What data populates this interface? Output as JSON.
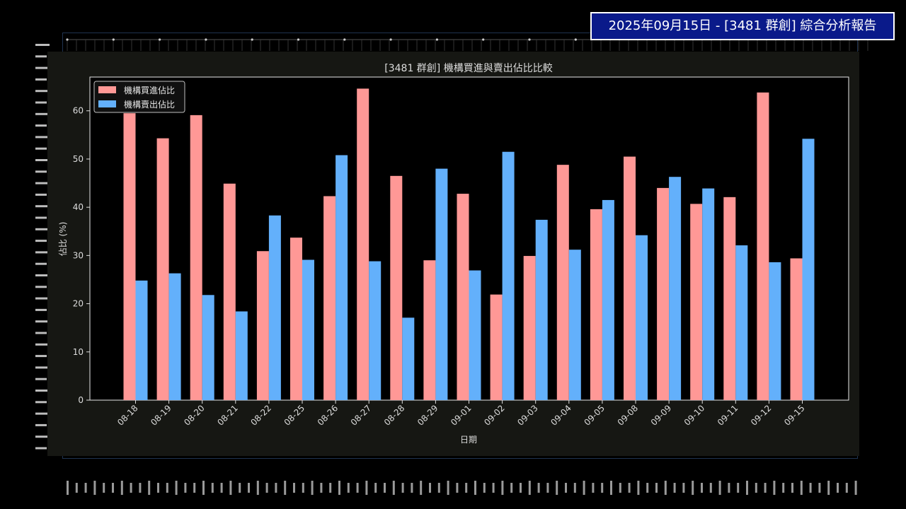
{
  "header": {
    "title": "2025年09月15日 - [3481 群創] 綜合分析報告"
  },
  "colors": {
    "buy": "#ff9896",
    "sell": "#63b0fb",
    "panel": "#161713",
    "header_bg": "#0a1a8a"
  },
  "chart_data": {
    "type": "bar",
    "title": "[3481 群創] 機構買進與賣出佔比比較",
    "xlabel": "日期",
    "ylabel": "佔比 (%)",
    "ylim": [
      0,
      67
    ],
    "yticks": [
      0,
      10,
      20,
      30,
      40,
      50,
      60
    ],
    "legend_position": "top-left",
    "grid": false,
    "categories": [
      "08-18",
      "08-19",
      "08-20",
      "08-21",
      "08-22",
      "08-25",
      "08-26",
      "08-27",
      "08-28",
      "08-29",
      "09-01",
      "09-02",
      "09-03",
      "09-04",
      "09-05",
      "09-08",
      "09-09",
      "09-10",
      "09-11",
      "09-12",
      "09-15"
    ],
    "series": [
      {
        "name": "機構買進佔比",
        "color": "#ff9896",
        "values": [
          59.5,
          54.3,
          59.1,
          44.9,
          30.9,
          33.7,
          42.3,
          64.6,
          46.5,
          29.0,
          42.8,
          21.9,
          29.9,
          48.8,
          39.6,
          50.5,
          44.0,
          40.7,
          42.1,
          63.8,
          29.4
        ]
      },
      {
        "name": "機構賣出佔比",
        "color": "#63b0fb",
        "values": [
          24.8,
          26.3,
          21.8,
          18.4,
          38.3,
          29.1,
          50.8,
          28.8,
          17.1,
          48.0,
          26.9,
          51.5,
          37.4,
          31.2,
          41.5,
          34.2,
          46.3,
          43.9,
          32.1,
          28.6,
          54.2
        ]
      }
    ]
  }
}
